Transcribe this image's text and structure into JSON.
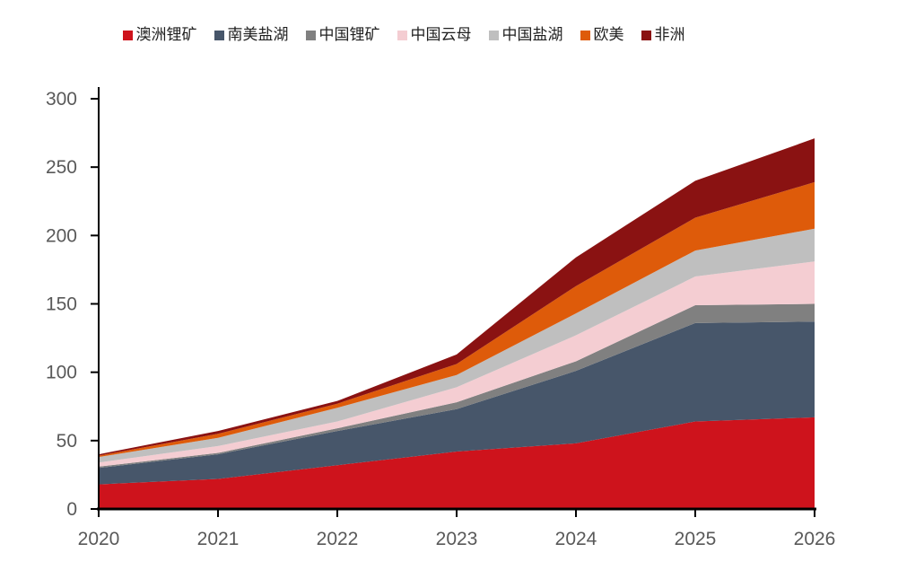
{
  "chart_data": {
    "type": "area",
    "stacked": true,
    "title": "",
    "xlabel": "",
    "ylabel": "",
    "x": [
      "2020",
      "2021",
      "2022",
      "2023",
      "2024",
      "2025",
      "2026"
    ],
    "ylim": [
      0,
      300
    ],
    "yticks": [
      "0",
      "50",
      "100",
      "150",
      "200",
      "250",
      "300"
    ],
    "grid": false,
    "legend_position": "top",
    "series": [
      {
        "name": "澳洲锂矿",
        "color": "#CE131C",
        "values": [
          18,
          22,
          32,
          42,
          48,
          64,
          67
        ]
      },
      {
        "name": "南美盐湖",
        "color": "#47566A",
        "values": [
          12,
          18,
          25,
          31,
          53,
          72,
          70
        ]
      },
      {
        "name": "中国锂矿",
        "color": "#808080",
        "values": [
          1,
          1,
          2,
          5,
          7,
          13,
          13
        ]
      },
      {
        "name": "中国云母",
        "color": "#F4CDD2",
        "values": [
          3,
          5,
          5,
          11,
          19,
          21,
          31
        ]
      },
      {
        "name": "中国盐湖",
        "color": "#BFBFBF",
        "values": [
          4,
          6,
          10,
          9,
          16,
          19,
          24
        ]
      },
      {
        "name": "欧美",
        "color": "#DE5B0A",
        "values": [
          1,
          3,
          3,
          8,
          20,
          24,
          34
        ]
      },
      {
        "name": "非洲",
        "color": "#8A1212",
        "values": [
          1,
          2,
          2,
          7,
          21,
          27,
          32
        ]
      }
    ],
    "totals": [
      40,
      57,
      79,
      113,
      184,
      240,
      271
    ],
    "axis_color": "#000000",
    "tick_label_color": "#595959"
  }
}
